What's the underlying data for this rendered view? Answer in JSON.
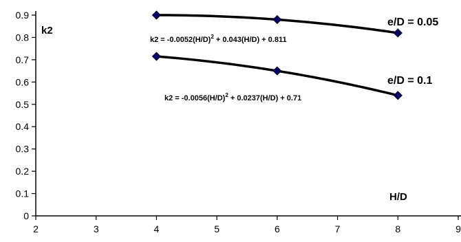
{
  "chart_data": {
    "type": "line",
    "title": "",
    "xlabel": "H/D",
    "ylabel": "k2",
    "xlim": [
      2,
      9
    ],
    "ylim": [
      0,
      0.9
    ],
    "x_ticks": [
      "2",
      "3",
      "4",
      "5",
      "6",
      "7",
      "8",
      "9"
    ],
    "y_ticks": [
      "0",
      "0.1",
      "0.2",
      "0.3",
      "0.4",
      "0.5",
      "0.6",
      "0.7",
      "0.8",
      "0.9"
    ],
    "grid": false,
    "legend": "none",
    "series": [
      {
        "name": "e/D = 0.05",
        "x": [
          4,
          6,
          8
        ],
        "y": [
          0.9,
          0.88,
          0.82
        ],
        "trendline": "polynomial order 2",
        "equation": {
          "prefix": "k2 = -0.0052(H/D)",
          "exponent": "2",
          "suffix": " + 0.043(H/D) + 0.811"
        },
        "color": "#000000",
        "marker_color": "#000066"
      },
      {
        "name": "e/D = 0.1",
        "x": [
          4,
          6,
          8
        ],
        "y": [
          0.715,
          0.65,
          0.54
        ],
        "trendline": "polynomial order 2",
        "equation": {
          "prefix": "k2 = -0.0056(H/D)",
          "exponent": "2",
          "suffix": " + 0.0237(H/D) + 0.71"
        },
        "color": "#000000",
        "marker_color": "#000066"
      }
    ]
  }
}
